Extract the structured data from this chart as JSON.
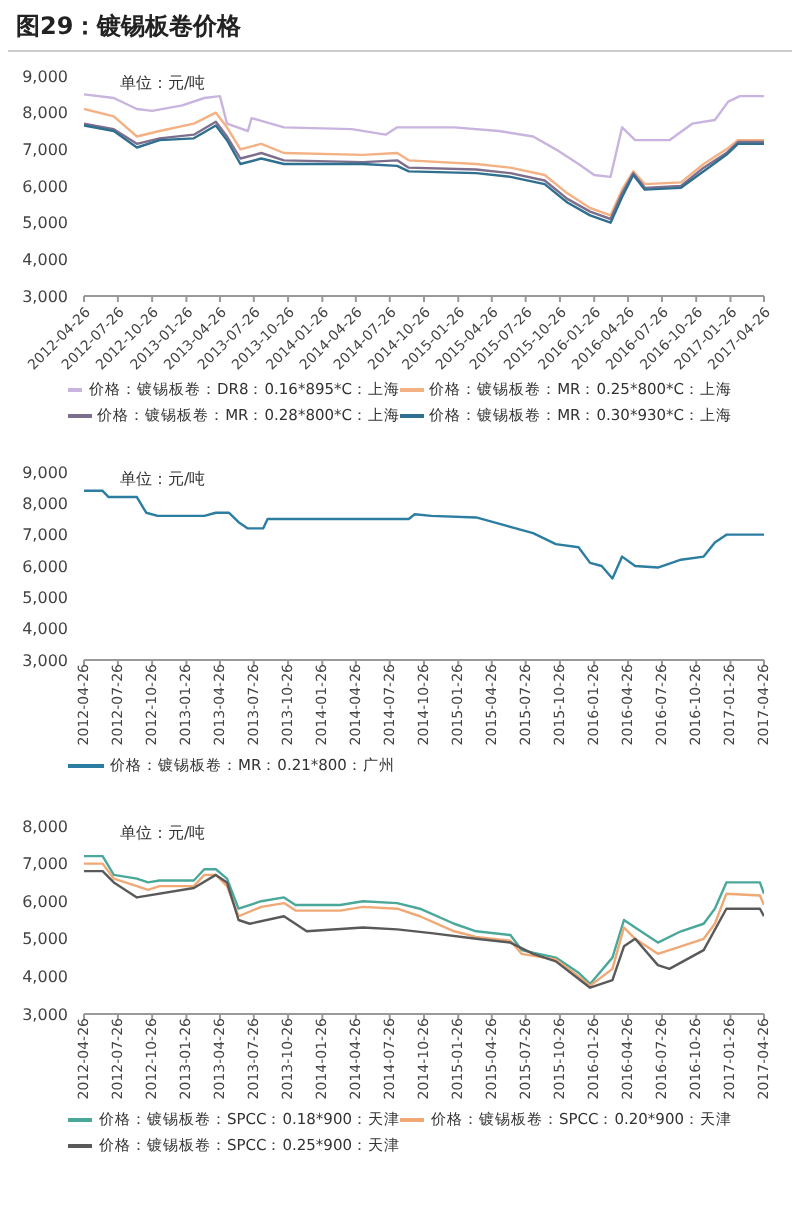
{
  "chart_data": [
    {
      "type": "line",
      "title": "图29：镀锡板卷价格",
      "annotations": [
        "单位：元/吨"
      ],
      "legend": "bottom",
      "marker": "none",
      "line_style": "solid",
      "grid": false,
      "xlim": [
        "2012-04-26",
        "2017-04-26"
      ],
      "xticks": [
        "2012-04-26",
        "2012-07-26",
        "2012-10-26",
        "2013-01-26",
        "2013-04-26",
        "2013-07-26",
        "2013-10-26",
        "2014-01-26",
        "2014-04-26",
        "2014-07-26",
        "2014-10-26",
        "2015-01-26",
        "2015-04-26",
        "2015-07-26",
        "2015-10-26",
        "2016-01-26",
        "2016-04-26",
        "2016-07-26",
        "2016-10-26",
        "2017-01-26",
        "2017-04-26"
      ],
      "ylim": [
        3000,
        9000
      ],
      "yticks": [
        {
          "value": 3000,
          "label": "3,000"
        },
        {
          "value": 4000,
          "label": "4,000"
        },
        {
          "value": 5000,
          "label": "5,000"
        },
        {
          "value": 6000,
          "label": "6,000"
        },
        {
          "value": 7000,
          "label": "7,000"
        },
        {
          "value": 8000,
          "label": "8,000"
        },
        {
          "value": 9000,
          "label": "9,000"
        }
      ],
      "series": [
        {
          "name": "价格：镀锡板卷：DR8：0.16*895*C：上海",
          "color": "#c8b4de",
          "x": [
            "2012-04-26",
            "2012-07-15",
            "2012-09-15",
            "2012-10-26",
            "2013-01-15",
            "2013-03-15",
            "2013-04-26",
            "2013-05-15",
            "2013-07-10",
            "2013-07-20",
            "2013-10-15",
            "2014-04-15",
            "2014-07-15",
            "2014-08-15",
            "2015-01-15",
            "2015-05-15",
            "2015-08-15",
            "2015-10-15",
            "2015-12-15",
            "2016-01-26",
            "2016-03-10",
            "2016-04-10",
            "2016-05-15",
            "2016-08-15",
            "2016-10-15",
            "2016-12-15",
            "2017-01-20",
            "2017-02-20",
            "2017-04-26"
          ],
          "values": [
            8500,
            8400,
            8100,
            8050,
            8200,
            8400,
            8450,
            7700,
            7500,
            7850,
            7600,
            7550,
            7400,
            7600,
            7600,
            7500,
            7350,
            7000,
            6600,
            6300,
            6250,
            7600,
            7250,
            7250,
            7700,
            7800,
            8300,
            8450,
            8450
          ]
        },
        {
          "name": "价格：镀锡板卷：MR：0.25*800*C：上海",
          "color": "#f4b183",
          "x": [
            "2012-04-26",
            "2012-07-15",
            "2012-09-15",
            "2012-11-15",
            "2013-02-15",
            "2013-04-15",
            "2013-05-15",
            "2013-06-20",
            "2013-08-15",
            "2013-10-15",
            "2014-05-15",
            "2014-08-15",
            "2014-09-15",
            "2015-03-15",
            "2015-06-15",
            "2015-09-15",
            "2015-11-15",
            "2016-01-15",
            "2016-03-10",
            "2016-04-10",
            "2016-05-10",
            "2016-06-10",
            "2016-09-15",
            "2016-11-15",
            "2017-01-15",
            "2017-02-15",
            "2017-04-26"
          ],
          "values": [
            8100,
            7900,
            7350,
            7500,
            7700,
            8000,
            7600,
            7000,
            7150,
            6900,
            6850,
            6900,
            6700,
            6600,
            6500,
            6300,
            5800,
            5400,
            5200,
            5900,
            6400,
            6050,
            6100,
            6600,
            7000,
            7250,
            7250
          ]
        },
        {
          "name": "价格：镀锡板卷：MR：0.28*800*C：上海",
          "color": "#7d6e8c",
          "x": [
            "2012-04-26",
            "2012-07-15",
            "2012-09-15",
            "2012-11-15",
            "2013-02-15",
            "2013-04-15",
            "2013-05-15",
            "2013-06-20",
            "2013-08-15",
            "2013-10-15",
            "2014-05-15",
            "2014-08-15",
            "2014-09-15",
            "2015-03-15",
            "2015-06-15",
            "2015-09-15",
            "2015-11-15",
            "2016-01-15",
            "2016-03-10",
            "2016-04-10",
            "2016-05-10",
            "2016-06-10",
            "2016-09-15",
            "2016-11-15",
            "2017-01-15",
            "2017-02-15",
            "2017-04-26"
          ],
          "values": [
            7700,
            7550,
            7150,
            7300,
            7400,
            7750,
            7350,
            6750,
            6900,
            6700,
            6650,
            6700,
            6500,
            6450,
            6350,
            6150,
            5650,
            5300,
            5100,
            5800,
            6350,
            5950,
            6000,
            6500,
            6900,
            7200,
            7200
          ]
        },
        {
          "name": "价格：镀锡板卷：MR：0.30*930*C：上海",
          "color": "#2f6f8f",
          "x": [
            "2012-04-26",
            "2012-07-15",
            "2012-09-15",
            "2012-11-15",
            "2013-02-15",
            "2013-04-15",
            "2013-05-15",
            "2013-06-20",
            "2013-08-15",
            "2013-10-15",
            "2014-05-15",
            "2014-08-15",
            "2014-09-15",
            "2015-03-15",
            "2015-06-15",
            "2015-09-15",
            "2015-11-15",
            "2016-01-15",
            "2016-03-10",
            "2016-04-10",
            "2016-05-10",
            "2016-06-10",
            "2016-09-15",
            "2016-11-15",
            "2017-01-15",
            "2017-02-15",
            "2017-04-26"
          ],
          "values": [
            7650,
            7500,
            7050,
            7250,
            7300,
            7650,
            7250,
            6600,
            6750,
            6600,
            6600,
            6550,
            6400,
            6350,
            6250,
            6050,
            5550,
            5200,
            5000,
            5700,
            6300,
            5900,
            5950,
            6400,
            6850,
            7150,
            7150
          ]
        }
      ]
    },
    {
      "type": "line",
      "annotations": [
        "单位：元/吨"
      ],
      "legend": "bottom",
      "marker": "none",
      "line_style": "solid",
      "grid": false,
      "xlim": [
        "2012-04-26",
        "2017-04-26"
      ],
      "xticks": [
        "2012-04-26",
        "2012-07-26",
        "2012-10-26",
        "2013-01-26",
        "2013-04-26",
        "2013-07-26",
        "2013-10-26",
        "2014-01-26",
        "2014-04-26",
        "2014-07-26",
        "2014-10-26",
        "2015-01-26",
        "2015-04-26",
        "2015-07-26",
        "2015-10-26",
        "2016-01-26",
        "2016-04-26",
        "2016-07-26",
        "2016-10-26",
        "2017-01-26",
        "2017-04-26"
      ],
      "ylim": [
        3000,
        9000
      ],
      "yticks": [
        {
          "value": 3000,
          "label": "3,000"
        },
        {
          "value": 4000,
          "label": "4,000"
        },
        {
          "value": 5000,
          "label": "5,000"
        },
        {
          "value": 6000,
          "label": "6,000"
        },
        {
          "value": 7000,
          "label": "7,000"
        },
        {
          "value": 8000,
          "label": "8,000"
        },
        {
          "value": 9000,
          "label": "9,000"
        }
      ],
      "series": [
        {
          "name": "价格：镀锡板卷：MR：0.21*800：广州",
          "color": "#2b7ea1",
          "x": [
            "2012-04-26",
            "2012-06-15",
            "2012-07-01",
            "2012-09-15",
            "2012-10-10",
            "2012-11-10",
            "2013-03-15",
            "2013-04-15",
            "2013-05-20",
            "2013-06-15",
            "2013-07-10",
            "2013-08-20",
            "2013-09-01",
            "2014-09-15",
            "2014-10-01",
            "2014-11-15",
            "2015-03-15",
            "2015-05-15",
            "2015-08-15",
            "2015-10-15",
            "2015-12-15",
            "2016-01-15",
            "2016-02-15",
            "2016-03-15",
            "2016-04-10",
            "2016-05-15",
            "2016-07-15",
            "2016-09-15",
            "2016-11-15",
            "2016-12-15",
            "2017-01-15",
            "2017-04-26"
          ],
          "values": [
            8400,
            8400,
            8200,
            8200,
            7700,
            7600,
            7600,
            7700,
            7700,
            7400,
            7200,
            7200,
            7500,
            7500,
            7650,
            7600,
            7550,
            7350,
            7050,
            6700,
            6600,
            6100,
            6000,
            5600,
            6300,
            6000,
            5950,
            6200,
            6300,
            6750,
            7000,
            7000
          ]
        }
      ]
    },
    {
      "type": "line",
      "annotations": [
        "单位：元/吨"
      ],
      "legend": "bottom",
      "marker": "none",
      "line_style": "solid",
      "grid": false,
      "xlim": [
        "2012-04-26",
        "2017-04-26"
      ],
      "xticks": [
        "2012-04-26",
        "2012-07-26",
        "2012-10-26",
        "2013-01-26",
        "2013-04-26",
        "2013-07-26",
        "2013-10-26",
        "2014-01-26",
        "2014-04-26",
        "2014-07-26",
        "2014-10-26",
        "2015-01-26",
        "2015-04-26",
        "2015-07-26",
        "2015-10-26",
        "2016-01-26",
        "2016-04-26",
        "2016-07-26",
        "2016-10-26",
        "2017-01-26",
        "2017-04-26"
      ],
      "ylim": [
        3000,
        8000
      ],
      "yticks": [
        {
          "value": 3000,
          "label": "3,000"
        },
        {
          "value": 4000,
          "label": "4,000"
        },
        {
          "value": 5000,
          "label": "5,000"
        },
        {
          "value": 6000,
          "label": "6,000"
        },
        {
          "value": 7000,
          "label": "7,000"
        },
        {
          "value": 8000,
          "label": "8,000"
        }
      ],
      "series": [
        {
          "name": "价格：镀锡板卷：SPCC：0.18*900：天津",
          "color": "#4aa89a",
          "x": [
            "2012-04-26",
            "2012-06-15",
            "2012-07-15",
            "2012-09-15",
            "2012-10-15",
            "2012-11-15",
            "2013-02-15",
            "2013-03-15",
            "2013-04-15",
            "2013-05-15",
            "2013-06-15",
            "2013-08-15",
            "2013-10-15",
            "2013-11-15",
            "2014-03-15",
            "2014-05-15",
            "2014-08-15",
            "2014-10-15",
            "2015-01-15",
            "2015-03-15",
            "2015-06-15",
            "2015-07-15",
            "2015-10-15",
            "2015-12-15",
            "2016-01-15",
            "2016-03-15",
            "2016-04-15",
            "2016-05-15",
            "2016-07-15",
            "2016-09-15",
            "2016-11-15",
            "2016-12-15",
            "2017-01-15",
            "2017-04-15",
            "2017-04-26"
          ],
          "values": [
            7200,
            7200,
            6700,
            6600,
            6500,
            6550,
            6550,
            6850,
            6850,
            6600,
            5800,
            6000,
            6100,
            5900,
            5900,
            6000,
            5950,
            5800,
            5400,
            5200,
            5100,
            4700,
            4500,
            4100,
            3800,
            4500,
            5500,
            5300,
            4900,
            5200,
            5400,
            5800,
            6500,
            6500,
            6200
          ]
        },
        {
          "name": "价格：镀锡板卷：SPCC：0.20*900：天津",
          "color": "#f0a875",
          "x": [
            "2012-04-26",
            "2012-06-15",
            "2012-07-15",
            "2012-09-15",
            "2012-10-15",
            "2012-11-15",
            "2013-02-15",
            "2013-03-15",
            "2013-04-15",
            "2013-05-15",
            "2013-06-15",
            "2013-08-15",
            "2013-10-15",
            "2013-11-15",
            "2014-03-15",
            "2014-05-15",
            "2014-08-15",
            "2014-10-15",
            "2015-01-15",
            "2015-03-15",
            "2015-06-15",
            "2015-07-15",
            "2015-10-15",
            "2015-12-15",
            "2016-01-15",
            "2016-03-15",
            "2016-04-15",
            "2016-05-15",
            "2016-07-15",
            "2016-09-15",
            "2016-11-15",
            "2016-12-15",
            "2017-01-15",
            "2017-04-15",
            "2017-04-26"
          ],
          "values": [
            7000,
            7000,
            6600,
            6400,
            6300,
            6400,
            6400,
            6700,
            6700,
            6400,
            5600,
            5850,
            5950,
            5750,
            5750,
            5850,
            5800,
            5600,
            5200,
            5050,
            4950,
            4600,
            4450,
            4000,
            3750,
            4200,
            5300,
            5000,
            4600,
            4800,
            5000,
            5400,
            6200,
            6150,
            5900
          ]
        },
        {
          "name": "价格：镀锡板卷：SPCC：0.25*900：天津",
          "color": "#595959",
          "x": [
            "2012-04-26",
            "2012-06-15",
            "2012-07-15",
            "2012-09-15",
            "2013-02-15",
            "2013-04-15",
            "2013-05-15",
            "2013-06-15",
            "2013-07-15",
            "2013-10-15",
            "2013-12-15",
            "2014-05-15",
            "2014-08-15",
            "2014-11-15",
            "2015-03-15",
            "2015-06-15",
            "2015-08-15",
            "2015-10-15",
            "2016-01-15",
            "2016-03-15",
            "2016-04-15",
            "2016-05-15",
            "2016-07-15",
            "2016-08-15",
            "2016-11-15",
            "2017-01-15",
            "2017-04-15",
            "2017-04-26"
          ],
          "values": [
            6800,
            6800,
            6500,
            6100,
            6350,
            6700,
            6500,
            5500,
            5400,
            5600,
            5200,
            5300,
            5250,
            5150,
            5000,
            4900,
            4600,
            4400,
            3700,
            3900,
            4800,
            5000,
            4300,
            4200,
            4700,
            5800,
            5800,
            5600
          ]
        }
      ]
    }
  ]
}
